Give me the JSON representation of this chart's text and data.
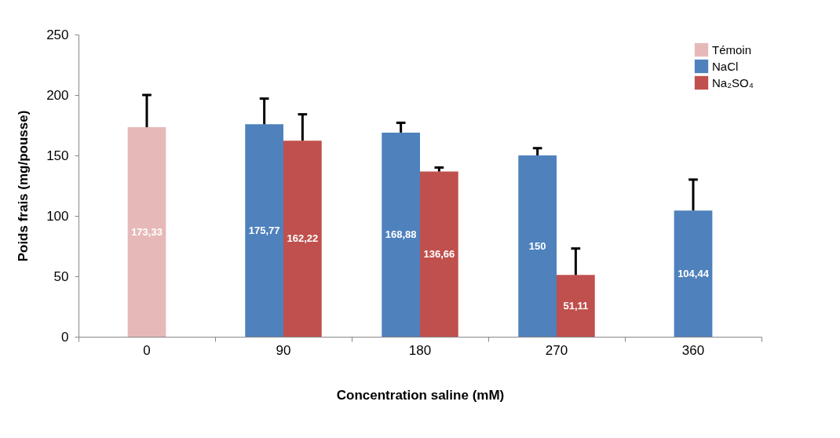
{
  "chart_data": {
    "type": "bar",
    "xlabel": "Concentration saline (mM)",
    "ylabel": "Poids frais (mg/pousse)",
    "categories": [
      "0",
      "90",
      "180",
      "270",
      "360"
    ],
    "series": [
      {
        "name": "Témoin",
        "color": "#e6b9b8",
        "values": [
          173.33,
          null,
          null,
          null,
          null
        ],
        "errors": [
          [
            173.33,
            200
          ],
          null,
          null,
          null,
          null
        ],
        "value_labels": [
          "173,33",
          null,
          null,
          null,
          null
        ]
      },
      {
        "name": "NaCl",
        "color": "#4f81bd",
        "values": [
          null,
          175.77,
          168.88,
          150,
          104.44
        ],
        "errors": [
          null,
          [
            175.77,
            197
          ],
          [
            168.88,
            177
          ],
          [
            150,
            156
          ],
          [
            104.44,
            130
          ]
        ],
        "value_labels": [
          null,
          "175,77",
          "168,88",
          "150",
          "104,44"
        ]
      },
      {
        "name": "Na₂SO₄",
        "color": "#c0504d",
        "values": [
          null,
          162.22,
          136.66,
          51.11,
          null
        ],
        "errors": [
          null,
          [
            162.22,
            184
          ],
          [
            136.66,
            140
          ],
          [
            51.11,
            73
          ],
          null
        ],
        "value_labels": [
          null,
          "162,22",
          "136,66",
          "51,11",
          null
        ]
      }
    ],
    "ylim": [
      0,
      250
    ],
    "yticks": [
      0,
      50,
      100,
      150,
      200,
      250
    ],
    "grid": false,
    "legend": "top right"
  }
}
